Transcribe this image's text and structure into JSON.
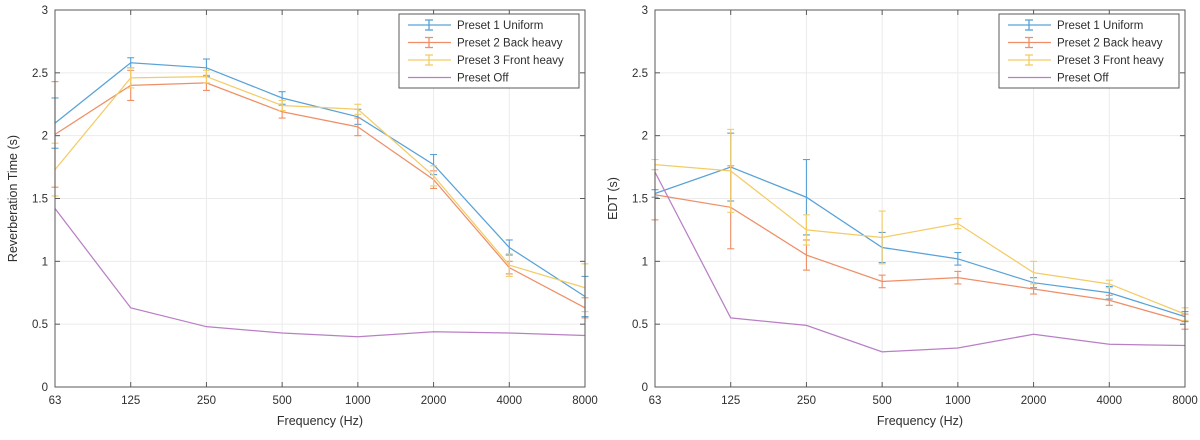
{
  "figure": {
    "background": "#ffffff"
  },
  "colors": {
    "blue": "#58A2D8",
    "orange": "#EE8F68",
    "yellow": "#F3CC67",
    "purple": "#B97FC5",
    "axis": "#5a5a5a",
    "grid": "#ebebeb",
    "text": "#2e2e2e",
    "legend_background": "#ffffff"
  },
  "chart_data": [
    {
      "type": "line",
      "title": "",
      "xlabel": "Frequency (Hz)",
      "ylabel": "Reverberation Time (s)",
      "x_categories": [
        "63",
        "125",
        "250",
        "500",
        "1000",
        "2000",
        "4000",
        "8000"
      ],
      "x_scale": "log-octave-categories",
      "y_ticks": [
        "0",
        "0.5",
        "1",
        "1.5",
        "2",
        "2.5",
        "3"
      ],
      "ylim": [
        0,
        3
      ],
      "grid": true,
      "legend_position": "top-right",
      "series": [
        {
          "name": "Preset 1 Uniform",
          "color_key": "blue",
          "has_errorbars": true,
          "values": [
            2.1,
            2.58,
            2.54,
            2.3,
            2.15,
            1.77,
            1.11,
            0.72
          ],
          "errors": [
            0.2,
            0.04,
            0.07,
            0.05,
            0.06,
            0.08,
            0.06,
            0.16
          ]
        },
        {
          "name": "Preset 2 Back heavy",
          "color_key": "orange",
          "has_errorbars": true,
          "values": [
            2.01,
            2.4,
            2.42,
            2.19,
            2.07,
            1.65,
            0.95,
            0.63
          ],
          "errors": [
            0.42,
            0.12,
            0.06,
            0.05,
            0.07,
            0.07,
            0.05,
            0.08
          ]
        },
        {
          "name": "Preset 3 Front heavy",
          "color_key": "yellow",
          "has_errorbars": true,
          "values": [
            1.73,
            2.46,
            2.47,
            2.24,
            2.21,
            1.68,
            0.97,
            0.79
          ],
          "errors": [
            0.21,
            0.08,
            0.05,
            0.04,
            0.04,
            0.08,
            0.09,
            0.19
          ]
        },
        {
          "name": "Preset Off",
          "color_key": "purple",
          "has_errorbars": false,
          "values": [
            1.42,
            0.63,
            0.48,
            0.43,
            0.4,
            0.44,
            0.43,
            0.41
          ],
          "errors": null
        }
      ]
    },
    {
      "type": "line",
      "title": "",
      "xlabel": "Frequency (Hz)",
      "ylabel": "EDT (s)",
      "x_categories": [
        "63",
        "125",
        "250",
        "500",
        "1000",
        "2000",
        "4000",
        "8000"
      ],
      "x_scale": "log-octave-categories",
      "y_ticks": [
        "0",
        "0.5",
        "1",
        "1.5",
        "2",
        "2.5",
        "3"
      ],
      "ylim": [
        0,
        3
      ],
      "grid": true,
      "legend_position": "top-right",
      "series": [
        {
          "name": "Preset 1 Uniform",
          "color_key": "blue",
          "has_errorbars": true,
          "values": [
            1.54,
            1.75,
            1.51,
            1.11,
            1.02,
            0.83,
            0.75,
            0.56
          ],
          "errors": [
            0.03,
            0.27,
            0.3,
            0.12,
            0.05,
            0.04,
            0.05,
            0.04
          ]
        },
        {
          "name": "Preset 2 Back heavy",
          "color_key": "orange",
          "has_errorbars": true,
          "values": [
            1.53,
            1.43,
            1.05,
            0.84,
            0.87,
            0.78,
            0.69,
            0.52
          ],
          "errors": [
            0.2,
            0.33,
            0.12,
            0.05,
            0.05,
            0.04,
            0.04,
            0.06
          ]
        },
        {
          "name": "Preset 3 Front heavy",
          "color_key": "yellow",
          "has_errorbars": true,
          "values": [
            1.77,
            1.72,
            1.25,
            1.19,
            1.3,
            0.91,
            0.82,
            0.58
          ],
          "errors": [
            0.04,
            0.33,
            0.12,
            0.21,
            0.04,
            0.09,
            0.03,
            0.05
          ]
        },
        {
          "name": "Preset Off",
          "color_key": "purple",
          "has_errorbars": false,
          "values": [
            1.71,
            0.55,
            0.49,
            0.28,
            0.31,
            0.42,
            0.34,
            0.33
          ],
          "errors": null
        }
      ]
    }
  ]
}
